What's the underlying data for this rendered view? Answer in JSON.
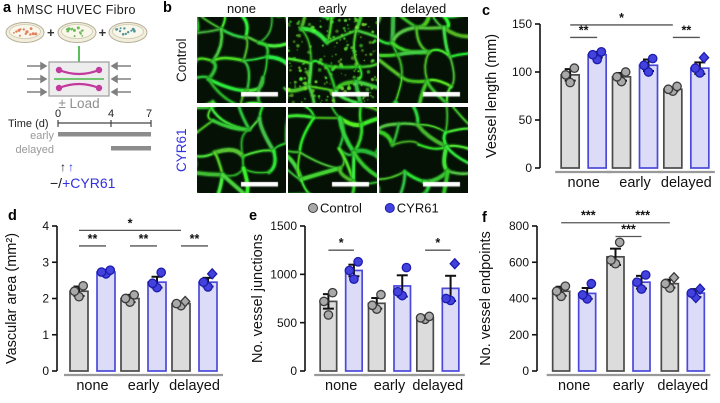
{
  "colors": {
    "cyr61_blue": "#3230e0",
    "cyr61_bar_fill": "#dcdcf9",
    "cyr61_bar_stroke": "#4b49d8",
    "cyr61_dot_fill": "#4442dd",
    "cyr61_dot_stroke": "#1c1cae",
    "control_bar_fill": "#dcdcdc",
    "control_bar_stroke": "#4a4a4a",
    "control_dot_fill": "#a9a9a9",
    "control_dot_stroke": "#3a3a3a",
    "vessel_green": "#35d435",
    "device_magenta": "#c23a9e",
    "timeline_gray": "#8c8c8c"
  },
  "panel_a": {
    "label": "a",
    "title": "hMSC HUVEC Fibro",
    "plus": "+",
    "load": "± Load",
    "time_label": "Time (d)",
    "ticks": [
      "0",
      "4",
      "7"
    ],
    "early_label": "early",
    "delayed_label": "delayed",
    "arrow_black": "↑",
    "arrow_blue": "↑",
    "rx_prefix": "−/",
    "rx_name": "+CYR61",
    "dish_colors": [
      "#e0825e",
      "#6cb85c",
      "#4f939c"
    ]
  },
  "panel_b": {
    "label": "b",
    "col_headers": [
      "none",
      "early",
      "delayed"
    ],
    "rows": [
      {
        "label": "Control",
        "color": "#1c1c1c"
      },
      {
        "label": "CYR61",
        "color": "#3230e0"
      }
    ]
  },
  "chart_data": [
    {
      "panel": "c",
      "type": "bar",
      "ylabel": "Vessel length (mm)",
      "ylim": [
        0,
        150
      ],
      "yticks": [
        0,
        50,
        100,
        150
      ],
      "categories": [
        "none",
        "early",
        "delayed"
      ],
      "grid": false,
      "series": [
        {
          "name": "Control",
          "fill": "#dcdcdc",
          "stroke": "#4a4a4a",
          "dot_fill": "#a9a9a9",
          "dot_stroke": "#3a3a3a",
          "label_color": "#2e2e2e",
          "values": [
            97,
            95,
            82
          ],
          "err": [
            6,
            4,
            2
          ],
          "dots": [
            [
              89,
              97,
              104
            ],
            [
              90,
              95,
              100
            ],
            [
              80,
              82,
              85
            ]
          ]
        },
        {
          "name": "CYR61",
          "fill": "#dcdcf9",
          "stroke": "#4b49d8",
          "dot_fill": "#4442dd",
          "dot_stroke": "#1c1cae",
          "label_color": "#3230e0",
          "values": [
            118,
            107,
            104
          ],
          "err": [
            3,
            6,
            6
          ],
          "dots": [
            [
              113,
              118,
              121
            ],
            [
              100,
              107,
              114
            ],
            [
              99,
              104,
              115
            ]
          ],
          "diamonds": [
            [
              2,
              2
            ]
          ]
        }
      ],
      "sig": [
        {
          "a": [
            0,
            0
          ],
          "b": [
            0,
            1
          ],
          "y": 136,
          "stars": "**"
        },
        {
          "a": [
            0,
            0
          ],
          "b": [
            2,
            0
          ],
          "y": 149,
          "stars": "*"
        },
        {
          "a": [
            2,
            0
          ],
          "b": [
            2,
            1
          ],
          "y": 136,
          "stars": "**"
        }
      ],
      "legend": false
    },
    {
      "panel": "d",
      "type": "bar",
      "ylabel": "Vascular area (mm²)",
      "ylim": [
        0,
        4
      ],
      "yticks": [
        0,
        1,
        2,
        3,
        4
      ],
      "categories": [
        "none",
        "early",
        "delayed"
      ],
      "grid": false,
      "series": [
        {
          "name": "Control",
          "fill": "#dcdcdc",
          "stroke": "#4a4a4a",
          "dot_fill": "#a9a9a9",
          "dot_stroke": "#3a3a3a",
          "label_color": "#2e2e2e",
          "values": [
            2.2,
            2.0,
            1.86
          ],
          "err": [
            0.13,
            0.1,
            0.05
          ],
          "dots": [
            [
              2.05,
              2.2,
              2.35
            ],
            [
              1.9,
              2.0,
              2.1
            ],
            [
              1.8,
              1.86,
              1.92
            ]
          ],
          "diamonds": [
            [
              2,
              2
            ]
          ]
        },
        {
          "name": "CYR61",
          "fill": "#dcdcf9",
          "stroke": "#4b49d8",
          "dot_fill": "#4442dd",
          "dot_stroke": "#1c1cae",
          "label_color": "#3230e0",
          "values": [
            2.73,
            2.45,
            2.45
          ],
          "err": [
            0.06,
            0.15,
            0.12
          ],
          "dots": [
            [
              2.68,
              2.73,
              2.78
            ],
            [
              2.3,
              2.42,
              2.72
            ],
            [
              2.32,
              2.45,
              2.68
            ]
          ],
          "diamonds": [
            [
              2,
              2
            ]
          ]
        }
      ],
      "sig": [
        {
          "a": [
            0,
            0
          ],
          "b": [
            0,
            1
          ],
          "y": 3.45,
          "stars": "**"
        },
        {
          "a": [
            1,
            0
          ],
          "b": [
            1,
            1
          ],
          "y": 3.45,
          "stars": "**"
        },
        {
          "a": [
            2,
            0
          ],
          "b": [
            2,
            1
          ],
          "y": 3.45,
          "stars": "**"
        },
        {
          "a": [
            0,
            0
          ],
          "b": [
            2,
            0
          ],
          "y": 3.88,
          "stars": "*"
        }
      ],
      "legend": false
    },
    {
      "panel": "e",
      "type": "bar",
      "ylabel": "No. vessel junctions",
      "ylim": [
        0,
        1500
      ],
      "yticks": [
        0,
        500,
        1000,
        1500
      ],
      "categories": [
        "none",
        "early",
        "delayed"
      ],
      "grid": false,
      "series": [
        {
          "name": "Control",
          "fill": "#dcdcdc",
          "stroke": "#4a4a4a",
          "dot_fill": "#a9a9a9",
          "dot_stroke": "#3a3a3a",
          "label_color": "#2e2e2e",
          "values": [
            720,
            700,
            550
          ],
          "err": [
            75,
            55,
            18
          ],
          "dots": [
            [
              580,
              720,
              810
            ],
            [
              640,
              680,
              790
            ],
            [
              535,
              550,
              565
            ]
          ]
        },
        {
          "name": "CYR61",
          "fill": "#dcdcf9",
          "stroke": "#4b49d8",
          "dot_fill": "#4442dd",
          "dot_stroke": "#1c1cae",
          "label_color": "#3230e0",
          "values": [
            1040,
            880,
            855
          ],
          "err": [
            60,
            110,
            130
          ],
          "dots": [
            [
              950,
              1040,
              1130
            ],
            [
              780,
              820,
              1070
            ],
            [
              730,
              750,
              1110
            ]
          ],
          "diamonds": [
            [
              2,
              2
            ]
          ]
        }
      ],
      "sig": [
        {
          "a": [
            0,
            0
          ],
          "b": [
            0,
            1
          ],
          "y": 1250,
          "stars": "*"
        },
        {
          "a": [
            2,
            0
          ],
          "b": [
            2,
            1
          ],
          "y": 1250,
          "stars": "*"
        }
      ],
      "legend": true,
      "legend_position": "top"
    },
    {
      "panel": "f",
      "type": "bar",
      "ylabel": "No. vessel endpoints",
      "ylim": [
        0,
        800
      ],
      "yticks": [
        0,
        200,
        400,
        600,
        800
      ],
      "categories": [
        "none",
        "early",
        "delayed"
      ],
      "grid": false,
      "series": [
        {
          "name": "Control",
          "fill": "#dcdcdc",
          "stroke": "#4a4a4a",
          "dot_fill": "#a9a9a9",
          "dot_stroke": "#3a3a3a",
          "label_color": "#2e2e2e",
          "values": [
            440,
            630,
            482
          ],
          "err": [
            25,
            45,
            22
          ],
          "dots": [
            [
              412,
              440,
              468
            ],
            [
              592,
              612,
              710
            ],
            [
              458,
              482,
              515
            ]
          ],
          "diamonds": [
            [
              2,
              2
            ]
          ]
        },
        {
          "name": "CYR61",
          "fill": "#dcdcf9",
          "stroke": "#4b49d8",
          "dot_fill": "#4442dd",
          "dot_stroke": "#1c1cae",
          "label_color": "#3230e0",
          "values": [
            428,
            490,
            430
          ],
          "err": [
            30,
            35,
            22
          ],
          "dots": [
            [
              398,
              420,
              482
            ],
            [
              452,
              490,
              530
            ],
            [
              405,
              430,
              452
            ]
          ],
          "diamonds": [
            [
              2,
              0
            ],
            [
              2,
              2
            ]
          ]
        }
      ],
      "sig": [
        {
          "a": [
            0,
            0
          ],
          "b": [
            1,
            0
          ],
          "y": 818,
          "stars": "***"
        },
        {
          "a": [
            1,
            0
          ],
          "b": [
            2,
            0
          ],
          "y": 818,
          "stars": "***"
        },
        {
          "a": [
            1,
            0
          ],
          "b": [
            1,
            1
          ],
          "y": 742,
          "stars": "***"
        }
      ],
      "legend": false
    }
  ]
}
